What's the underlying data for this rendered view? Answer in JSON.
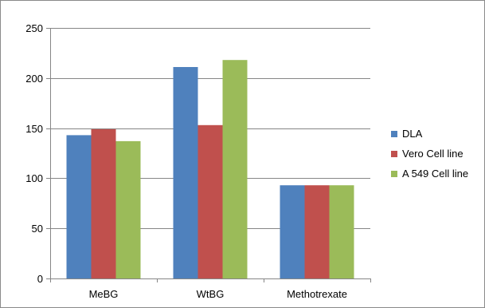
{
  "chart_data": {
    "type": "bar",
    "title": "",
    "xlabel": "",
    "ylabel": "",
    "categories": [
      "MeBG",
      "WtBG",
      "Methotrexate"
    ],
    "series": [
      {
        "name": "DLA",
        "values": [
          143,
          211,
          93
        ],
        "color": "#4f81bd"
      },
      {
        "name": "Vero Cell line",
        "values": [
          149,
          153,
          93
        ],
        "color": "#c0504d"
      },
      {
        "name": "A 549 Cell line",
        "values": [
          137,
          218,
          93
        ],
        "color": "#9bbb59"
      }
    ],
    "ylim": [
      0,
      250
    ],
    "yticks": [
      0,
      50,
      100,
      150,
      200,
      250
    ],
    "grid": true,
    "legend_position": "right"
  }
}
